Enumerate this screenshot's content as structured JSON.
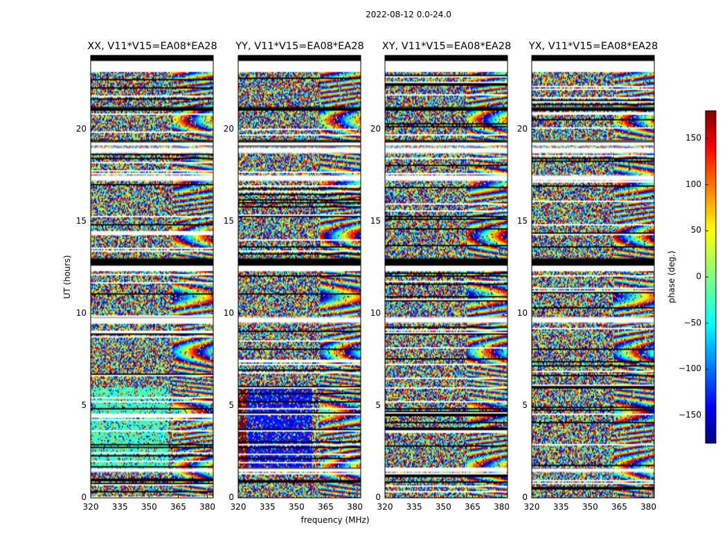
{
  "chart_data": {
    "type": "heatmap",
    "title": "2022-08-12 0.0-24.0",
    "xlabel": "frequency (MHz)",
    "ylabel": "UT (hours)",
    "xlim": [
      320,
      383
    ],
    "ylim": [
      0,
      24
    ],
    "xticks": [
      320,
      335,
      350,
      365,
      380
    ],
    "yticks": [
      0,
      5,
      10,
      15,
      20
    ],
    "panels": [
      {
        "title": "XX, V11*V15=EA08*EA28",
        "pol": "XX"
      },
      {
        "title": "YY, V11*V15=EA08*EA28",
        "pol": "YY"
      },
      {
        "title": "XY, V11*V15=EA08*EA28",
        "pol": "XY"
      },
      {
        "title": "YX, V11*V15=EA08*EA28",
        "pol": "YX"
      }
    ],
    "colorbar": {
      "label": "phase (deg.)",
      "range": [
        -180,
        180
      ],
      "ticks": [
        -150,
        -100,
        -50,
        0,
        50,
        100,
        150
      ],
      "tick_labels": [
        "−150",
        "−100",
        "−50",
        "0",
        "50",
        "100",
        "150"
      ],
      "colormap": "jet"
    },
    "flagged_ut_ranges": [
      [
        23.1,
        23.9
      ],
      [
        19.1,
        19.3
      ],
      [
        18.7,
        19.0
      ],
      [
        17.2,
        17.5
      ],
      [
        12.3,
        12.6
      ],
      [
        9.5,
        9.8
      ],
      [
        1.4,
        1.6
      ]
    ],
    "black_ut_ranges": [
      [
        23.7,
        24.0
      ],
      [
        12.6,
        13.0
      ],
      [
        19.3,
        19.4
      ],
      [
        21.0,
        21.2
      ]
    ]
  },
  "colors": {
    "axes": "#000000",
    "flag": "#ffffff",
    "dead": "#000000"
  }
}
